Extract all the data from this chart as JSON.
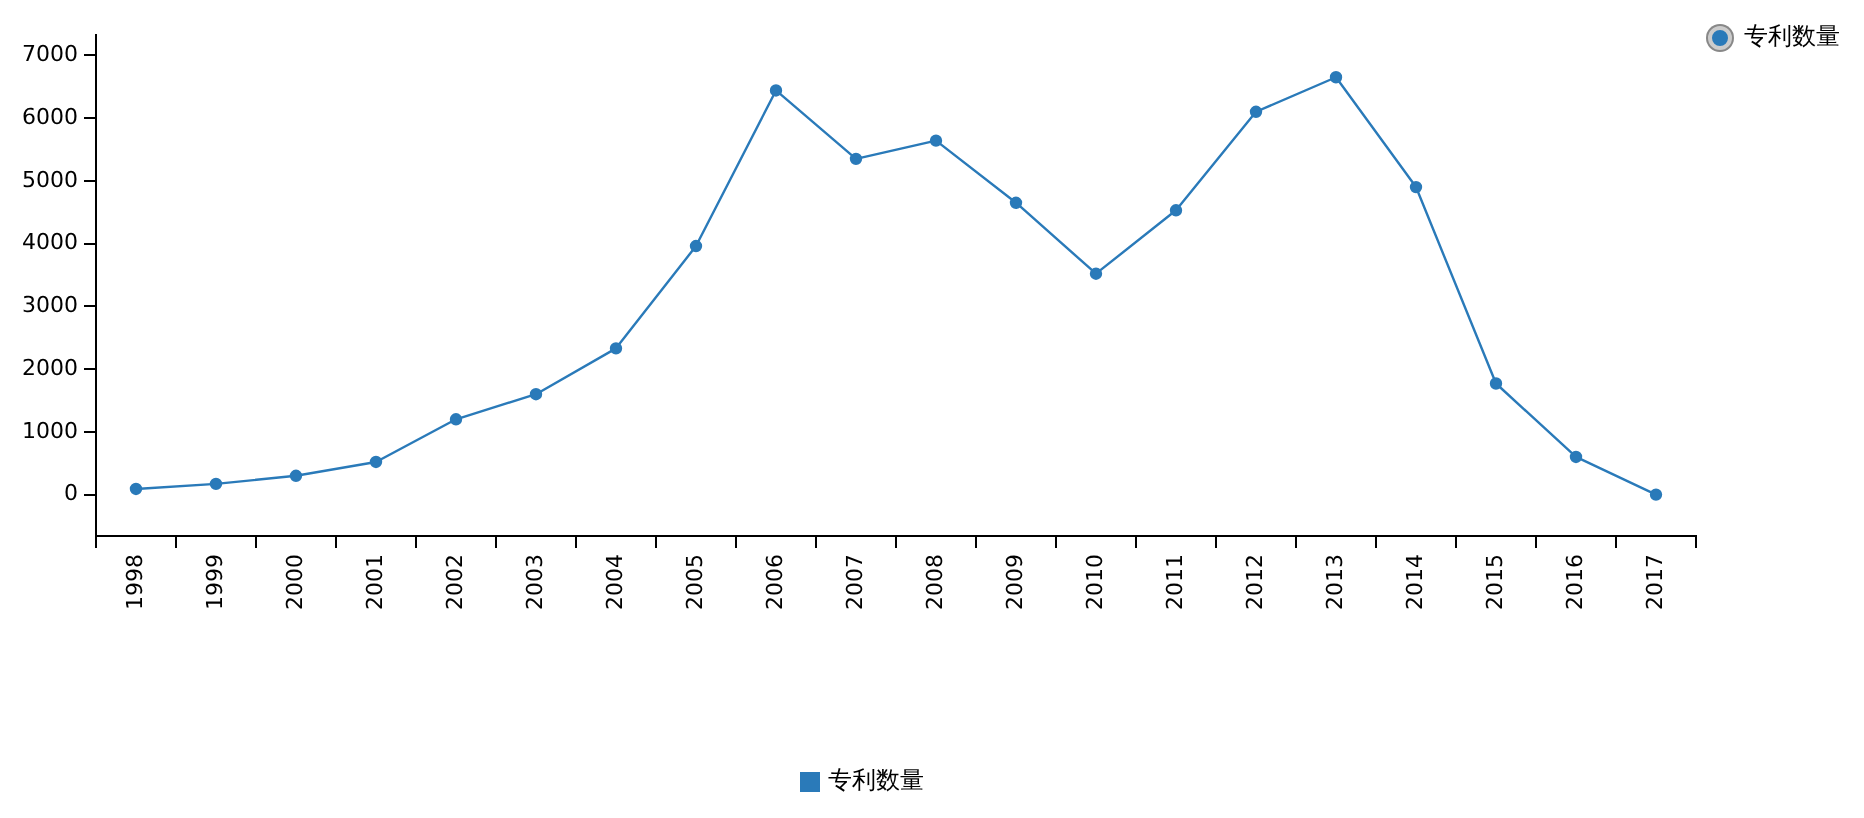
{
  "chart_data": {
    "type": "line",
    "categories": [
      "1998",
      "1999",
      "2000",
      "2001",
      "2002",
      "2003",
      "2004",
      "2005",
      "2006",
      "2007",
      "2008",
      "2009",
      "2010",
      "2011",
      "2012",
      "2013",
      "2014",
      "2015",
      "2016",
      "2017"
    ],
    "series": [
      {
        "name": "专利数量",
        "color": "#2a7ab9",
        "values": [
          90,
          170,
          300,
          520,
          1200,
          1600,
          2330,
          3960,
          6440,
          5350,
          5640,
          4650,
          3520,
          4530,
          6100,
          6650,
          4900,
          1770,
          600,
          0
        ]
      }
    ],
    "ylim": [
      -660,
      7320
    ],
    "yticks": [
      0,
      1000,
      2000,
      3000,
      4000,
      5000,
      6000,
      7000
    ],
    "grid": false,
    "legend": "top right",
    "marker": "circle",
    "line_style": "solid"
  }
}
